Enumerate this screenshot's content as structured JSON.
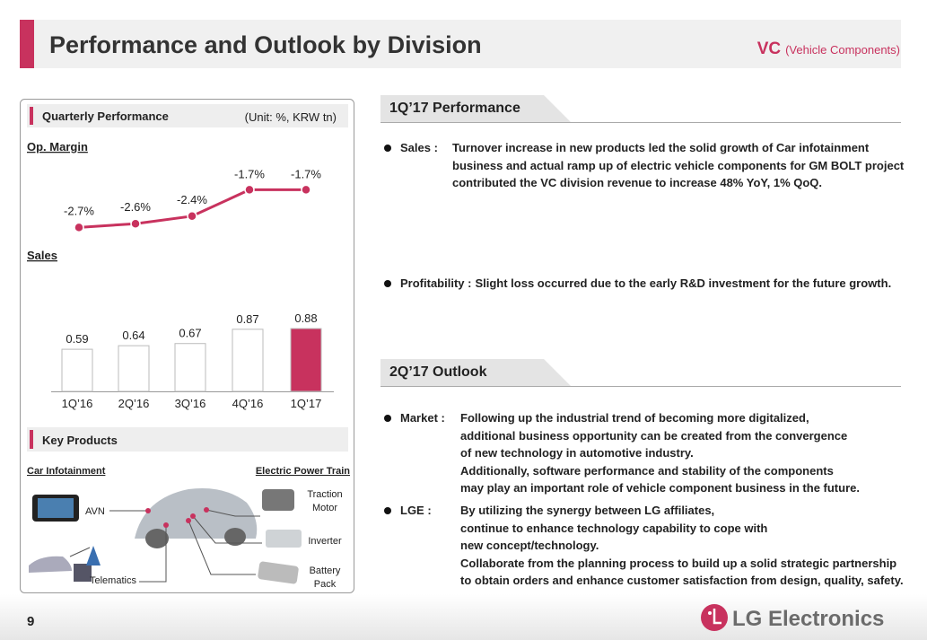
{
  "header": {
    "title": "Performance and Outlook by Division",
    "division": "VC",
    "division_full": "(Vehicle Components)"
  },
  "left_panel": {
    "title": "Quarterly Performance",
    "unit": "(Unit: %, KRW tn)",
    "key_products": {
      "title": "Key Products",
      "left_heading": "Car Infotainment",
      "right_heading": "Electric Power Train",
      "labels": [
        "AVN",
        "Telematics",
        "Traction Motor",
        "Inverter",
        "Battery Pack"
      ]
    }
  },
  "chart_data": [
    {
      "type": "line",
      "title": "Op. Margin",
      "values": [
        -2.7,
        -2.6,
        -2.4,
        -1.7,
        -1.7
      ],
      "value_labels": [
        "-2.7%",
        "-2.6%",
        "-2.4%",
        "-1.7%",
        "-1.7%"
      ],
      "color": "#c8325e",
      "ylim": [
        -3,
        -1
      ]
    },
    {
      "type": "bar",
      "title": "Sales",
      "categories": [
        "1Q’16",
        "2Q’16",
        "3Q’16",
        "4Q’16",
        "1Q’17"
      ],
      "values": [
        0.59,
        0.64,
        0.67,
        0.87,
        0.88
      ],
      "colors": [
        "#ffffff",
        "#ffffff",
        "#ffffff",
        "#ffffff",
        "#c8325e"
      ],
      "ylim": [
        0,
        1
      ]
    }
  ],
  "sections": [
    {
      "title": "1Q’17 Performance",
      "items": [
        {
          "label": "Sales :",
          "lines": [
            "Turnover increase in new products led the solid growth of Car infotainment",
            "business and actual ramp up of electric vehicle components for GM BOLT project",
            "contributed the VC division revenue to increase 48% YoY, 1% QoQ."
          ]
        },
        {
          "label": "Profitability :",
          "lines": [
            "Slight loss occurred due to the early R&D investment for the future growth."
          ]
        }
      ]
    },
    {
      "title": "2Q’17 Outlook",
      "items": [
        {
          "label": "Market :",
          "lines": [
            "Following up the industrial trend of becoming more digitalized,",
            "additional business opportunity can be created from the convergence",
            "of new technology in automotive industry.",
            "Additionally, software performance and stability of the components",
            "may play an important role of vehicle component business in the future."
          ]
        },
        {
          "label": "LGE :",
          "lines": [
            "By utilizing the synergy between LG affiliates,",
            "continue to enhance technology capability to cope with",
            "new concept/technology.",
            "Collaborate from the planning process to build up a solid strategic partnership",
            "to obtain orders and enhance customer satisfaction from design, quality, safety."
          ]
        }
      ]
    }
  ],
  "footer": {
    "page": "9",
    "brand": "LG Electronics"
  }
}
